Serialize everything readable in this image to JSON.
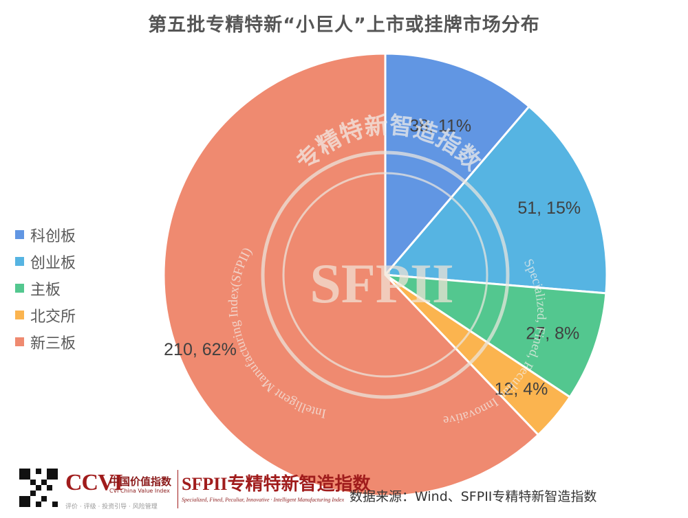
{
  "chart_data": {
    "type": "pie",
    "title": "第五批专精特新“小巨人”上市或挂牌市场分布",
    "categories": [
      "科创板",
      "创业板",
      "主板",
      "北交所",
      "新三板"
    ],
    "values": [
      38,
      51,
      27,
      12,
      210
    ],
    "percent_labels": [
      "38, 11%",
      "51, 15%",
      "27, 8%",
      "12, 4%",
      "210, 62%"
    ],
    "colors": [
      "#6196E3",
      "#56B4E2",
      "#53C78F",
      "#FBB44F",
      "#EF8A70"
    ],
    "legend_position": "left"
  },
  "watermark": {
    "cn_name": "专精特新智造指数",
    "abbr": "SFPII",
    "en_right": "Specialized, Fined, Peculiar, Innovative",
    "en_left": "Intelligent Manufacturing Index(SFPII)"
  },
  "footer": {
    "ccvi_mark": "CCVI",
    "ccvi_cn": "中国价值指数",
    "ccvi_en": "CVI China Value Index",
    "ccvi_sub": "评价 · 评级 · 投资引导 · 风险管理",
    "sfpii_brand": "SFPII专精特新智造指数",
    "sfpii_tag": "Specialized, Fined, Peculiar, Innovative · Intelligent Manufacturing Index",
    "source": "数据来源：Wind、SFPII专精特新智造指数"
  }
}
